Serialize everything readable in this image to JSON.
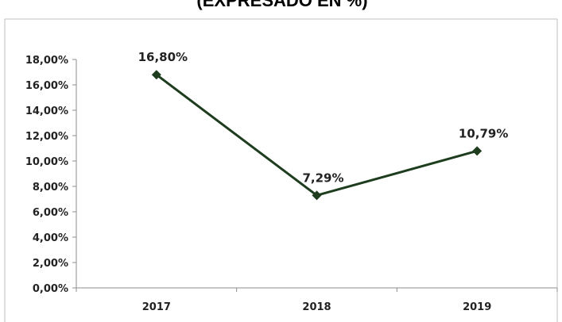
{
  "chart_data": {
    "type": "line",
    "title": "(EXPRESADO EN %)",
    "categories": [
      "2017",
      "2018",
      "2019"
    ],
    "series": [
      {
        "values": [
          16.8,
          7.29,
          10.79
        ],
        "labels": [
          "16,80%",
          "7,29%",
          "10,79%"
        ],
        "color": "#1e3d1e"
      }
    ],
    "ylim": [
      0,
      18
    ],
    "yticks": [
      0,
      2,
      4,
      6,
      8,
      10,
      12,
      14,
      16,
      18
    ],
    "ytick_labels": [
      "0,00%",
      "2,00%",
      "4,00%",
      "6,00%",
      "8,00%",
      "10,00%",
      "12,00%",
      "14,00%",
      "16,00%",
      "18,00%"
    ],
    "grid": false,
    "marker": "diamond"
  }
}
